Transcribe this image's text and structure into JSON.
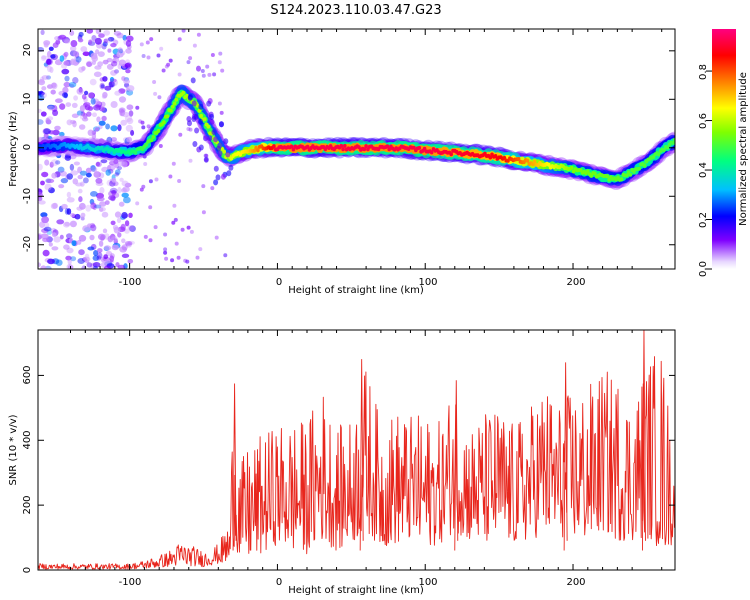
{
  "figure": {
    "title": "S124.2023.110.03.47.G23"
  },
  "colorbar": {
    "label": "Normalized spectral amplitude",
    "ticks": [
      "0.0",
      "0.2",
      "0.4",
      "0.6",
      "0.8"
    ],
    "range": [
      0,
      0.97
    ],
    "colormap": [
      "#ffffff",
      "#7f00ff",
      "#0000ff",
      "#00c0ff",
      "#00ff80",
      "#80ff00",
      "#ffff00",
      "#ff8000",
      "#ff0000",
      "#ff0080"
    ]
  },
  "chart_data": [
    {
      "type": "heatmap",
      "name": "spectrogram",
      "xlabel": "Height of straight line (km)",
      "ylabel": "Frequency (Hz)",
      "xlim": [
        -162,
        269
      ],
      "ylim": [
        -25,
        24.5
      ],
      "xticks": [
        "-100",
        "0",
        "100",
        "200"
      ],
      "yticks": [
        "-20",
        "-10",
        "0",
        "10",
        "20"
      ],
      "ridge": {
        "x": [
          -162,
          -140,
          -120,
          -100,
          -90,
          -80,
          -70,
          -65,
          -60,
          -55,
          -50,
          -45,
          -40,
          -35,
          -30,
          -25,
          -20,
          -10,
          0,
          20,
          50,
          80,
          100,
          120,
          140,
          160,
          180,
          200,
          220,
          230,
          240,
          250,
          260,
          269
        ],
        "y": [
          0,
          0.5,
          -0.3,
          -1,
          0,
          4,
          9,
          11.5,
          10,
          9,
          6,
          3,
          0.5,
          -1.5,
          -2,
          -1,
          -0.5,
          0,
          0,
          0,
          0,
          0,
          -0.5,
          -1,
          -1.5,
          -2.5,
          -3.5,
          -4.5,
          -6,
          -6.5,
          -5,
          -3,
          -0.5,
          1.5
        ]
      },
      "amplitude": {
        "x": [
          -162,
          -100,
          -80,
          -60,
          -40,
          -20,
          0,
          50,
          100,
          150,
          200,
          269
        ],
        "value": [
          0.25,
          0.45,
          0.55,
          0.6,
          0.6,
          0.7,
          0.95,
          0.95,
          0.95,
          0.9,
          0.55,
          0.5
        ]
      },
      "noise_region": [
        -162,
        -98
      ]
    },
    {
      "type": "line",
      "name": "snr",
      "xlabel": "Height of straight line (km)",
      "ylabel": "SNR (10 * v/v)",
      "xlim": [
        -162,
        269
      ],
      "ylim": [
        0,
        740
      ],
      "xticks": [
        "-100",
        "0",
        "100",
        "200"
      ],
      "yticks": [
        "0",
        "200",
        "400",
        "600"
      ],
      "color": "#e8261d",
      "envelope": {
        "x": [
          -162,
          -100,
          -90,
          -75,
          -65,
          -50,
          -40,
          -32,
          -30,
          -25,
          -20,
          -10,
          0,
          10,
          20,
          30,
          40,
          50,
          60,
          70,
          80,
          90,
          100,
          110,
          120,
          130,
          140,
          150,
          160,
          170,
          180,
          190,
          200,
          210,
          220,
          230,
          240,
          250,
          260,
          269
        ],
        "upper": [
          20,
          20,
          30,
          55,
          90,
          60,
          80,
          160,
          560,
          330,
          380,
          420,
          450,
          470,
          460,
          580,
          440,
          470,
          640,
          460,
          500,
          480,
          480,
          460,
          590,
          450,
          490,
          510,
          450,
          500,
          590,
          520,
          560,
          570,
          620,
          610,
          520,
          660,
          700,
          350
        ],
        "lower": [
          3,
          3,
          5,
          10,
          15,
          10,
          20,
          20,
          80,
          30,
          30,
          50,
          80,
          60,
          50,
          90,
          60,
          80,
          120,
          70,
          80,
          90,
          70,
          80,
          120,
          90,
          80,
          90,
          80,
          90,
          110,
          100,
          100,
          90,
          120,
          90,
          90,
          100,
          60,
          80
        ]
      },
      "peaks": [
        {
          "x": -29,
          "y": 575
        },
        {
          "x": 57,
          "y": 650
        },
        {
          "x": 121,
          "y": 585
        },
        {
          "x": 195,
          "y": 640
        },
        {
          "x": 248,
          "y": 740
        }
      ]
    }
  ]
}
